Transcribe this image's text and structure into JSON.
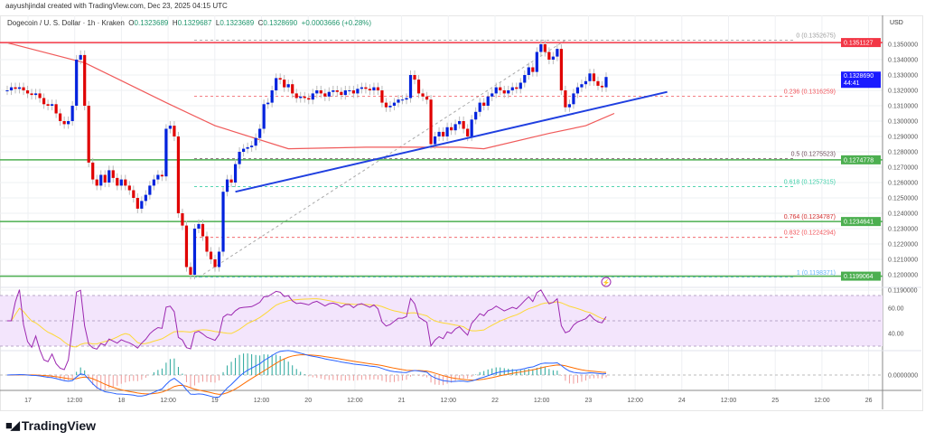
{
  "watermark": "aayushjindal created with TradingView.com, Dec 23, 2025 04:15 UTC",
  "legend": {
    "symbol": "Dogecoin / U. S. Dollar · 1h · Kraken",
    "open_label": "O",
    "open": "0.1323689",
    "high_label": "H",
    "high": "0.1329687",
    "low_label": "L",
    "low": "0.1323689",
    "close_label": "C",
    "close": "0.1328690",
    "change": "+0.0003666 (+0.28%)"
  },
  "price_axis": {
    "currency": "USD",
    "ticks": [
      "0.1350000",
      "0.1340000",
      "0.1330000",
      "0.1320000",
      "0.1310000",
      "0.1300000",
      "0.1290000",
      "0.1280000",
      "0.1270000",
      "0.1260000",
      "0.1250000",
      "0.1240000",
      "0.1230000",
      "0.1220000",
      "0.1210000",
      "0.1200000",
      "0.1190000"
    ],
    "last_price": "0.1328690",
    "countdown": "44:41"
  },
  "time_axis": [
    "17",
    "12:00",
    "18",
    "12:00",
    "19",
    "12:00",
    "20",
    "12:00",
    "21",
    "12:00",
    "22",
    "12:00",
    "23",
    "12:00",
    "24",
    "12:00",
    "25",
    "12:00",
    "26"
  ],
  "horizontal_levels": [
    {
      "price": 0.1351127,
      "label": "0.1351127",
      "color": "#f23645"
    },
    {
      "price": 0.1274778,
      "label": "0.1274778",
      "color": "#4caf50"
    },
    {
      "price": 0.1234641,
      "label": "0.1234641",
      "color": "#4caf50"
    },
    {
      "price": 0.1199064,
      "label": "0.1199064",
      "color": "#4caf50"
    }
  ],
  "fibonacci": {
    "low": 0.1198371,
    "high": 0.1352675,
    "levels": [
      {
        "ratio": 0,
        "price": 0.1352675,
        "label": "0 (0.1352675)",
        "color": "#9e9e9e"
      },
      {
        "ratio": 0.236,
        "price": 0.1316259,
        "label": "0.236 (0.1316259)",
        "color": "#f0555b"
      },
      {
        "ratio": 0.5,
        "price": 0.1275523,
        "label": "0.5 (0.1275523)",
        "color": "#6d4c5a"
      },
      {
        "ratio": 0.618,
        "price": 0.1257315,
        "label": "0.618 (0.1257315)",
        "color": "#3ccfa7"
      },
      {
        "ratio": 0.764,
        "price": 0.1234787,
        "label": "0.764 (0.1234787)",
        "color": "#d32f2f"
      },
      {
        "ratio": 0.832,
        "price": 0.1224294,
        "label": "0.832 (0.1224294)",
        "color": "#f0555b"
      },
      {
        "ratio": 1,
        "price": 0.1198371,
        "label": "1 (0.1198371)",
        "color": "#64b5f6"
      }
    ]
  },
  "colors": {
    "up": "#0022dd",
    "down": "#e00000",
    "ema": "#f05a5a",
    "trendline": "#1f3fe0",
    "rsi": "#9c27b0",
    "rsi_ma": "#fdd835",
    "macd": "#2962ff",
    "signal": "#ff6d00",
    "rsi_band": "#f3e5fc"
  },
  "chart_data": {
    "type": "candlestick",
    "interval": "1h",
    "closes": [
      0.132,
      0.1322,
      0.1321,
      0.1322,
      0.132,
      0.1318,
      0.1317,
      0.1318,
      0.1315,
      0.1311,
      0.131,
      0.1311,
      0.1305,
      0.13,
      0.1298,
      0.13,
      0.131,
      0.134,
      0.1343,
      0.131,
      0.1273,
      0.1262,
      0.1258,
      0.1265,
      0.126,
      0.1268,
      0.1263,
      0.1258,
      0.1262,
      0.1258,
      0.1255,
      0.125,
      0.1243,
      0.1248,
      0.1252,
      0.1258,
      0.1262,
      0.1265,
      0.1264,
      0.1295,
      0.1297,
      0.129,
      0.124,
      0.1232,
      0.1205,
      0.12,
      0.123,
      0.1233,
      0.1225,
      0.1215,
      0.121,
      0.1205,
      0.1215,
      0.1254,
      0.1262,
      0.126,
      0.1272,
      0.128,
      0.1282,
      0.1283,
      0.1284,
      0.1289,
      0.1295,
      0.1311,
      0.1312,
      0.132,
      0.1328,
      0.1327,
      0.1322,
      0.1324,
      0.1318,
      0.1315,
      0.1316,
      0.1315,
      0.1314,
      0.1318,
      0.132,
      0.1318,
      0.1316,
      0.1319,
      0.132,
      0.1319,
      0.1317,
      0.132,
      0.132,
      0.1318,
      0.1321,
      0.1322,
      0.1321,
      0.132,
      0.1322,
      0.132,
      0.1312,
      0.1309,
      0.131,
      0.1312,
      0.1314,
      0.1314,
      0.1315,
      0.133,
      0.1327,
      0.1318,
      0.1316,
      0.1314,
      0.1285,
      0.129,
      0.1293,
      0.129,
      0.1296,
      0.1294,
      0.1298,
      0.13,
      0.1295,
      0.129,
      0.1301,
      0.1306,
      0.1312,
      0.131,
      0.1316,
      0.1318,
      0.1322,
      0.132,
      0.1318,
      0.132,
      0.1322,
      0.1321,
      0.1325,
      0.133,
      0.1335,
      0.1332,
      0.1345,
      0.135,
      0.1345,
      0.134,
      0.1342,
      0.1347,
      0.132,
      0.1309,
      0.1311,
      0.1318,
      0.1322,
      0.1324,
      0.1326,
      0.1331,
      0.1326,
      0.1323,
      0.1322,
      0.13287
    ],
    "ema": [
      [
        0,
        0.1351
      ],
      [
        19,
        0.1338
      ],
      [
        39,
        0.1312
      ],
      [
        51,
        0.1297
      ],
      [
        69,
        0.1282
      ],
      [
        88,
        0.1283
      ],
      [
        111,
        0.1283
      ],
      [
        117,
        0.1282
      ],
      [
        133,
        0.1292
      ],
      [
        142,
        0.1297
      ],
      [
        149,
        0.1305
      ]
    ],
    "trendline": [
      [
        56,
        0.1254
      ],
      [
        162,
        0.1319
      ]
    ],
    "fib_anchor": [
      [
        47,
        0.1198371
      ],
      [
        137,
        0.1352675
      ]
    ],
    "ylim": [
      0.1185,
      0.1358
    ],
    "rsi_axis": [
      "60.00",
      "40.00"
    ],
    "macd_axis": [
      "0.0000000"
    ]
  }
}
